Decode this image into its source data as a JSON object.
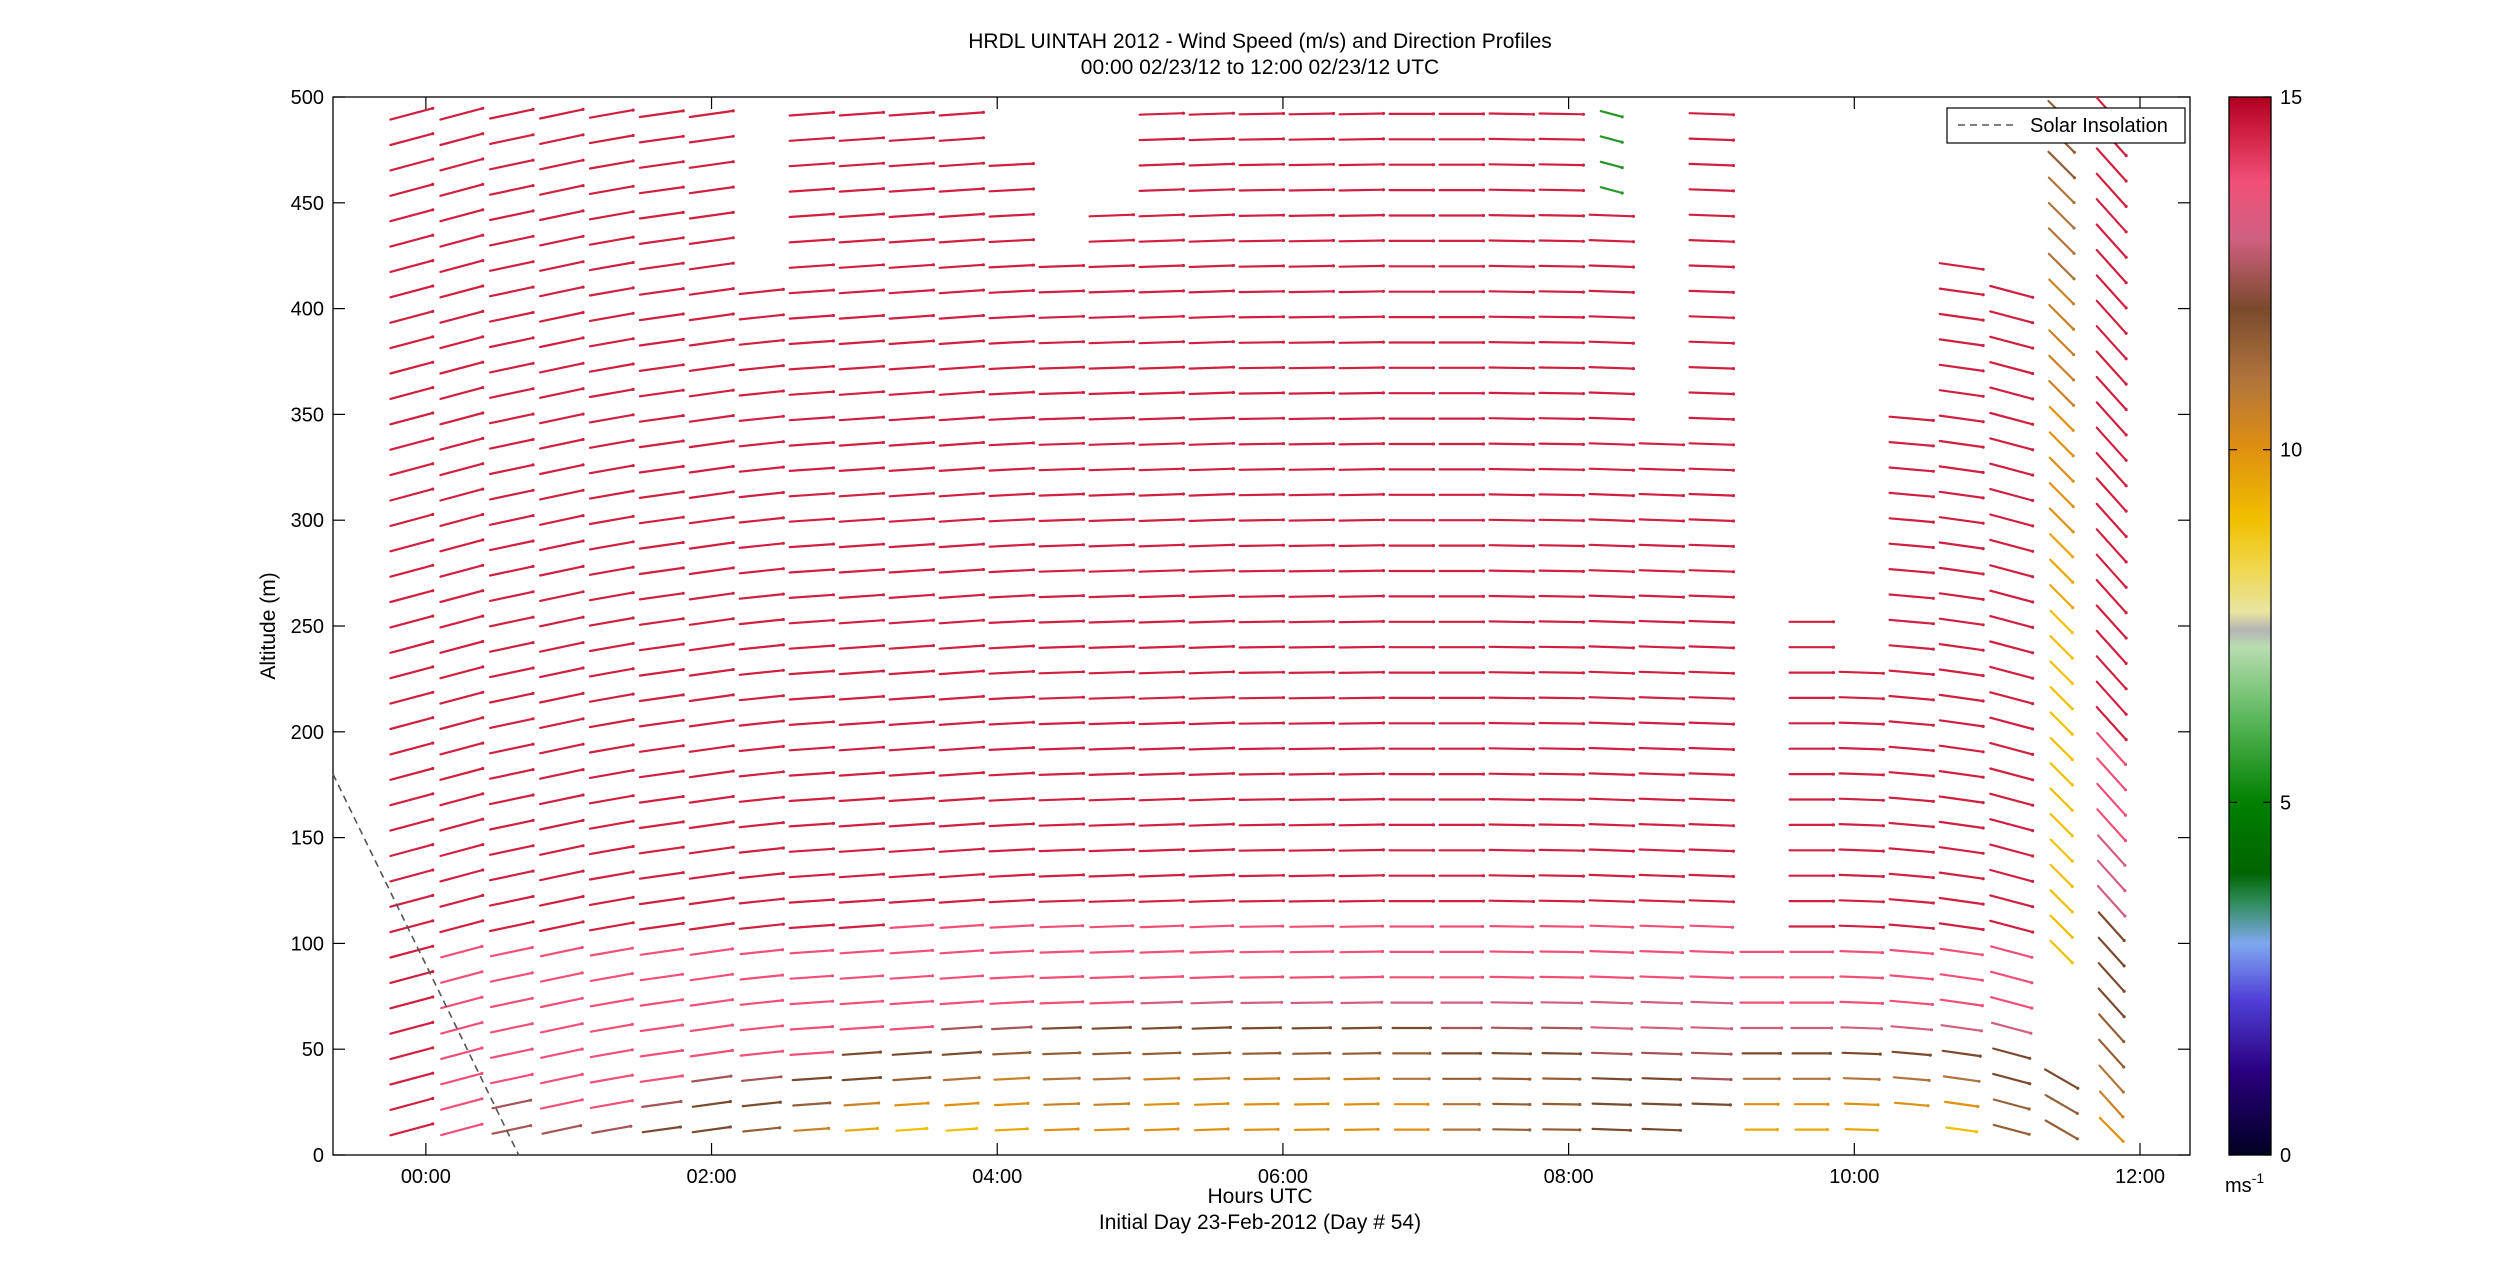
{
  "chart_data": {
    "type": "wind-barb-profile",
    "title": "HRDL UINTAH 2012 - Wind Speed (m/s) and Direction Profiles",
    "subtitle": "00:00 02/23/12 to 12:00 02/23/12  UTC",
    "xlabel": "Hours UTC",
    "footer": "Initial Day 23-Feb-2012 (Day # 54)",
    "ylabel": "Altitude (m)",
    "xlim": [
      -0.65,
      12.35
    ],
    "ylim": [
      0,
      500
    ],
    "x_ticks": [
      {
        "value": 0,
        "label": "00:00"
      },
      {
        "value": 2,
        "label": "02:00"
      },
      {
        "value": 4,
        "label": "04:00"
      },
      {
        "value": 6,
        "label": "06:00"
      },
      {
        "value": 8,
        "label": "08:00"
      },
      {
        "value": 10,
        "label": "10:00"
      },
      {
        "value": 12,
        "label": "12:00"
      }
    ],
    "y_ticks": [
      0,
      50,
      100,
      150,
      200,
      250,
      300,
      350,
      400,
      450,
      500
    ],
    "legend": {
      "label": "Solar Insolation",
      "placement": "top-right",
      "style": "dashed"
    },
    "solar_insolation": [
      [
        -0.65,
        180
      ],
      [
        0.65,
        0
      ]
    ],
    "colorbar": {
      "label": "ms",
      "label_sup": "-1",
      "range": [
        0,
        15
      ],
      "ticks": [
        0,
        5,
        10,
        15
      ],
      "stops": [
        {
          "v": 0,
          "color": "#000022"
        },
        {
          "v": 1.2,
          "color": "#2a0080"
        },
        {
          "v": 2.2,
          "color": "#5040d8"
        },
        {
          "v": 3.0,
          "color": "#80a8f0"
        },
        {
          "v": 3.6,
          "color": "#2e8b57"
        },
        {
          "v": 4.0,
          "color": "#006400"
        },
        {
          "v": 5.0,
          "color": "#008000"
        },
        {
          "v": 6.2,
          "color": "#5cb85c"
        },
        {
          "v": 7.2,
          "color": "#b8dcb0"
        },
        {
          "v": 7.45,
          "color": "#b4b4b4"
        },
        {
          "v": 7.7,
          "color": "#e8e4a0"
        },
        {
          "v": 8.3,
          "color": "#f0d850"
        },
        {
          "v": 9.0,
          "color": "#f0c000"
        },
        {
          "v": 10.0,
          "color": "#e09010"
        },
        {
          "v": 11.0,
          "color": "#b0743c"
        },
        {
          "v": 12.0,
          "color": "#7a4a2e"
        },
        {
          "v": 13.0,
          "color": "#d06080"
        },
        {
          "v": 13.8,
          "color": "#f05078"
        },
        {
          "v": 14.5,
          "color": "#d02040"
        },
        {
          "v": 15.0,
          "color": "#b00020"
        }
      ]
    },
    "sample_hours": [
      -0.1,
      0.25,
      0.6,
      0.95,
      1.3,
      1.65,
      2.0,
      2.35,
      2.7,
      3.05,
      3.4,
      3.75,
      4.1,
      4.45,
      4.8,
      5.15,
      5.5,
      5.85,
      6.2,
      6.55,
      6.9,
      7.25,
      7.6,
      7.95,
      8.3,
      8.65,
      9.0,
      9.35,
      9.7,
      10.05,
      10.4,
      10.75,
      11.1,
      11.45,
      11.8
    ],
    "heights_m": [
      12,
      24,
      36,
      48,
      60,
      72,
      84,
      96,
      108,
      120,
      132,
      144,
      156,
      168,
      180,
      192,
      204,
      216,
      228,
      240,
      252,
      264,
      276,
      288,
      300,
      312,
      324,
      336,
      348,
      360,
      372,
      384,
      396,
      408,
      420,
      432,
      444,
      456,
      468,
      480,
      492
    ],
    "profiles": [
      {
        "t": -0.1,
        "top": 492,
        "speed": "14.5 14.5 14.5 14.5 14.5 14.5 14.5 14.5 14.5 14.5 14.5 14.5 14.5 14.5 14.5 14.5 14.5 14.5 14.5 14.5 14.5 14.5 14.5 14.5 14.5 14.5 14.5 14.5 14.5 14.5 14.5 14.5 14.5 14.5 14.5 14.5 14.5 14.5 14.5 14.5 14.5",
        "dir": "255 255 255 255 255 255 255 255 255 255 255 255 255 255 255 255 255 255 255 255 255 255 255 255 255 255 255 255 255 255 255 255 255 255 255 255 255 255 255 255 255"
      },
      {
        "t": 0.25,
        "top": 492,
        "speed": "13.8 13.8 13.8 13.8 13.8 13.8 13.8 13.8 14.5 14.5 14.5 14.5 14.5 14.5 14.5 14.5 14.5 14.5 14.5 14.5 14.5 14.5 14.5 14.5 14.5 14.5 14.5 14.5 14.5 14.5 14.5 14.5 14.5 14.5 14.5 14.5 14.5 14.5 14.5 14.5 14.5",
        "dir": "255 255 255 255 255 255 255 255 255 255 255 255 255 255 255 255 255 255 255 255 255 255 255 255 255 255 255 255 255 255 255 255 255 255 255 255 255 255 255 255 255"
      },
      {
        "t": 0.6,
        "top": 492,
        "speed": "12.5 12.5 13.8 13.8 13.8 13.8 13.8 13.8 14.5 14.5 14.5 14.5 14.5 14.5 14.5 14.5 14.5 14.5 14.5 14.5 14.5 14.5 14.5 14.5 14.5 14.5 14.5 14.5 14.5 14.5 14.5 14.5 14.5 14.5 14.5 14.5 14.5 14.5 14.5 14.5 14.5",
        "dir": "258 258 258 258 258 258 258 258 258 258 258 258 258 258 258 258 258 258 258 258 258 258 258 258 258 258 258 258 258 258 258 258 258 258 258 258 258 258 258 258 258"
      },
      {
        "t": 0.95,
        "top": 492,
        "speed": "12.5 13.8 13.8 13.8 13.8 13.8 13.8 13.8 14.5 14.5 14.5 14.5 14.5 14.5 14.5 14.5 14.5 14.5 14.5 14.5 14.5 14.5 14.5 14.5 14.5 14.5 14.5 14.5 14.5 14.5 14.5 14.5 14.5 14.5 14.5 14.5 14.5 14.5 14.5 14.5 14.5",
        "dir": "258 258 258 258 258 258 258 258 258 258 258 258 258 258 258 258 258 258 258 258 258 258 258 258 258 258 258 258 258 258 258 258 258 258 258 258 258 258 258 258 258"
      },
      {
        "t": 1.3,
        "top": 492,
        "speed": "12.5 13.8 13.8 13.8 13.8 13.8 13.8 13.8 14.5 14.5 14.5 14.5 14.5 14.5 14.5 14.5 14.5 14.5 14.5 14.5 14.5 14.5 14.5 14.5 14.5 14.5 14.5 14.5 14.5 14.5 14.5 14.5 14.5 14.5 14.5 14.5 14.5 14.5 14.5 14.5 14.5",
        "dir": "260 260 260 260 260 260 260 260 260 260 260 260 260 260 260 260 260 260 260 260 260 260 260 260 260 260 260 260 260 260 260 260 260 260 260 260 260 260 260 260 260"
      },
      {
        "t": 1.65,
        "top": 492,
        "speed": "12.0 12.5 13.8 13.8 13.8 13.8 13.8 13.8 14.5 14.5 14.5 14.5 14.5 14.5 14.5 14.5 14.5 14.5 14.5 14.5 14.5 14.5 14.5 14.5 14.5 14.5 14.5 14.5 14.5 14.5 14.5 14.5 14.5 14.5 14.5 14.5 14.5 14.5 14.5 14.5 14.5",
        "dir": "262 262 262 262 262 262 262 262 262 262 262 262 262 262 262 262 262 262 262 262 262 262 262 262 262 262 262 262 262 262 262 262 262 262 262 262 262 262 262 262 262"
      },
      {
        "t": 2.0,
        "top": 492,
        "speed": "12.0 12.0 12.5 13.8 13.8 13.8 13.8 13.8 14.5 14.5 14.5 14.5 14.5 14.5 14.5 14.5 14.5 14.5 14.5 14.5 14.5 14.5 14.5 14.5 14.5 14.5 14.5 14.5 14.5 14.5 14.5 14.5 14.5 14.5 14.5 14.5 14.5 14.5 14.5 14.5 14.5",
        "dir": "262 262 262 262 262 262 262 262 262 262 262 262 262 262 262 262 262 262 262 262 262 262 262 262 262 262 262 262 262 262 262 262 262 262 262 262 262 262 262 262 262"
      },
      {
        "t": 2.35,
        "top": 408,
        "speed": "11.5 12.0 12.5 13.8 13.8 13.8 13.8 13.8 14.5 14.5 14.5 14.5 14.5 14.5 14.5 14.5 14.5 14.5 14.5 14.5 14.5 14.5 14.5 14.5 14.5 14.5 14.5 14.5 14.5 14.5 14.5 14.5 14.5 14.5",
        "dir": "264 264 264 264 264 264 264 264 264 264 264 264 264 264 264 264 264 264 264 264 264 264 264 264 264 264 264 264 264 264 264 264 264 264"
      },
      {
        "t": 2.7,
        "top": 492,
        "speed": "10.5 11.5 12.0 13.8 13.8 13.8 13.8 13.8 14.5 14.5 14.5 14.5 14.5 14.5 14.5 14.5 14.5 14.5 14.5 14.5 14.5 14.5 14.5 14.5 14.5 14.5 14.5 14.5 14.5 14.5 14.5 14.5 14.5 14.5 14.5 14.5 14.5 14.5 14.5 14.5 14.5",
        "dir": "266 266 266 266 266 266 266 266 266 266 266 266 266 266 266 266 266 266 266 266 266 266 266 266 266 266 266 266 266 266 266 266 266 266 266 266 266 266 266 266 266"
      },
      {
        "t": 3.05,
        "top": 492,
        "speed": "9.5 10.5 12.0 12.0 13.8 13.8 13.8 13.8 14.5 14.5 14.5 14.5 14.5 14.5 14.5 14.5 14.5 14.5 14.5 14.5 14.5 14.5 14.5 14.5 14.5 14.5 14.5 14.5 14.5 14.5 14.5 14.5 14.5 14.5 14.5 14.5 14.5 14.5 14.5 14.5 14.5",
        "dir": "266 266 266 266 266 266 266 266 266 266 266 266 266 266 266 266 266 266 266 266 266 266 266 266 266 266 266 266 266 266 266 266 266 266 266 266 266 266 266 266 266"
      },
      {
        "t": 3.4,
        "top": 492,
        "speed": "9.0 10.0 11.5 12.0 13.8 13.8 13.8 13.8 13.8 14.5 14.5 14.5 14.5 14.5 14.5 14.5 14.5 14.5 14.5 14.5 14.5 14.5 14.5 14.5 14.5 14.5 14.5 14.5 14.5 14.5 14.5 14.5 14.5 14.5 14.5 14.5 14.5 14.5 14.5 14.5 14.5",
        "dir": "266 266 266 266 266 266 266 266 266 266 266 266 266 266 266 266 266 266 266 266 266 266 266 266 266 266 266 266 266 266 266 266 266 266 266 266 266 266 266 266 266"
      },
      {
        "t": 3.75,
        "top": 492,
        "speed": "9.0 10.0 11.0 12.0 12.5 13.8 13.8 13.8 13.8 14.5 14.5 14.5 14.5 14.5 14.5 14.5 14.5 14.5 14.5 14.5 14.5 14.5 14.5 14.5 14.5 14.5 14.5 14.5 14.5 14.5 14.5 14.5 14.5 14.5 14.5 14.5 14.5 14.5 14.5 14.5 14.5",
        "dir": "266 266 266 266 266 266 266 266 266 266 266 266 266 266 266 266 266 266 266 266 266 266 266 266 266 266 266 266 266 266 266 266 266 266 266 266 266 266 266 266 266"
      },
      {
        "t": 4.1,
        "top": 468,
        "speed": "9.5 10.0 10.5 11.5 12.5 13.8 13.8 13.8 13.8 14.5 14.5 14.5 14.5 14.5 14.5 14.5 14.5 14.5 14.5 14.5 14.5 14.5 14.5 14.5 14.5 14.5 14.5 14.5 14.5 14.5 14.5 14.5 14.5 14.5 14.5 14.5 14.5 14.5 14.5",
        "dir": "267 267 267 267 267 267 267 267 267 267 267 267 267 267 267 267 267 267 267 267 267 267 267 267 267 267 267 267 267 267 267 267 267 267 267 267 267 267 267"
      },
      {
        "t": 4.45,
        "top": 420,
        "speed": "10.0 10.5 11.0 11.5 12.0 13.8 13.8 13.8 13.8 14.5 14.5 14.5 14.5 14.5 14.5 14.5 14.5 14.5 14.5 14.5 14.5 14.5 14.5 14.5 14.5 14.5 14.5 14.5 14.5 14.5 14.5 14.5 14.5 14.5 14.5",
        "dir": "268 268 268 268 268 268 268 268 268 268 268 268 268 268 268 268 268 268 268 268 268 268 268 268 268 268 268 268 268 268 268 268 268 268 268"
      },
      {
        "t": 4.8,
        "top": 444,
        "speed": "10.0 10.5 11.0 11.5 12.0 13.8 13.8 13.8 13.8 14.5 14.5 14.5 14.5 14.5 14.5 14.5 14.5 14.5 14.5 14.5 14.5 14.5 14.5 14.5 14.5 14.5 14.5 14.5 14.5 14.5 14.5 14.5 14.5 14.5 14.5 14.5 14.5",
        "dir": "268 268 268 268 268 268 268 268 268 268 268 268 268 268 268 268 268 268 268 268 268 268 268 268 268 268 268 268 268 268 268 268 268 268 268 268 268"
      },
      {
        "t": 5.15,
        "top": 492,
        "speed": "10.0 10.0 10.5 11.5 12.0 13.0 13.8 13.8 13.8 14.5 14.5 14.5 14.5 14.5 14.5 14.5 14.5 14.5 14.5 14.5 14.5 14.5 14.5 14.5 14.5 14.5 14.5 14.5 14.5 14.5 14.5 14.5 14.5 14.5 14.5 14.5 14.5 14.5 14.5 14.5 14.5",
        "dir": "268 268 268 268 268 268 268 268 268 268 268 268 268 268 268 268 268 268 268 268 268 268 268 268 268 268 268 268 268 268 268 268 268 268 268 268 268 268 268 268 268"
      },
      {
        "t": 5.5,
        "top": 492,
        "speed": "10.0 10.0 10.5 11.5 12.0 13.0 13.8 13.8 13.8 14.5 14.5 14.5 14.5 14.5 14.5 14.5 14.5 14.5 14.5 14.5 14.5 14.5 14.5 14.5 14.5 14.5 14.5 14.5 14.5 14.5 14.5 14.5 14.5 14.5 14.5 14.5 14.5 14.5 14.5 14.5 14.5",
        "dir": "268 268 268 268 268 268 268 268 268 268 268 268 268 268 268 268 268 268 268 268 268 268 268 268 268 268 268 268 268 268 268 268 268 268 268 268 268 268 268 268 268"
      },
      {
        "t": 5.85,
        "top": 492,
        "speed": "10.0 10.0 10.5 11.5 12.0 13.0 13.8 13.8 13.8 14.5 14.5 14.5 14.5 14.5 14.5 14.5 14.5 14.5 14.5 14.5 14.5 14.5 14.5 14.5 14.5 14.5 14.5 14.5 14.5 14.5 14.5 14.5 14.5 14.5 14.5 14.5 14.5 14.5 14.5 14.5 14.5",
        "dir": "269 269 269 269 269 269 269 269 269 269 269 269 269 269 269 269 269 269 269 269 269 269 269 269 269 269 269 269 269 269 269 269 269 269 269 269 269 269 269 269 269"
      },
      {
        "t": 6.2,
        "top": 492,
        "speed": "10.0 10.0 10.5 11.5 12.0 13.0 13.8 13.8 13.8 14.5 14.5 14.5 14.5 14.5 14.5 14.5 14.5 14.5 14.5 14.5 14.5 14.5 14.5 14.5 14.5 14.5 14.5 14.5 14.5 14.5 14.5 14.5 14.5 14.5 14.5 14.5 14.5 14.5 14.5 14.5 14.5",
        "dir": "269 269 269 269 269 269 269 269 269 269 269 269 269 269 269 269 269 269 269 269 269 269 269 269 269 269 269 269 269 269 269 269 269 269 269 269 269 269 269 269 269"
      },
      {
        "t": 6.55,
        "top": 492,
        "speed": "10.0 10.0 10.5 11.5 12.0 13.0 13.8 13.8 13.8 14.5 14.5 14.5 14.5 14.5 14.5 14.5 14.5 14.5 14.5 14.5 14.5 14.5 14.5 14.5 14.5 14.5 14.5 14.5 14.5 14.5 14.5 14.5 14.5 14.5 14.5 14.5 14.5 14.5 14.5 14.5 14.5",
        "dir": "269 269 269 269 269 269 269 269 269 269 269 269 269 269 269 269 269 269 269 269 269 269 269 269 269 269 269 269 269 269 269 269 269 269 269 269 269 269 269 269 269"
      },
      {
        "t": 6.9,
        "top": 492,
        "speed": "10.0 10.0 11.0 11.5 12.0 13.0 13.8 13.8 13.8 14.5 14.5 14.5 14.5 14.5 14.5 14.5 14.5 14.5 14.5 14.5 14.5 14.5 14.5 14.5 14.5 14.5 14.5 14.5 14.5 14.5 14.5 14.5 14.5 14.5 14.5 14.5 14.5 14.5 14.5 14.5 14.5",
        "dir": "270 270 270 270 270 270 270 270 270 270 270 270 270 270 270 270 270 270 270 270 270 270 270 270 270 270 270 270 270 270 270 270 270 270 270 270 270 270 270 270 270"
      },
      {
        "t": 7.25,
        "top": 492,
        "speed": "11.0 11.0 11.5 12.0 12.5 13.0 13.8 13.8 13.8 14.5 14.5 14.5 14.5 14.5 14.5 14.5 14.5 14.5 14.5 14.5 14.5 14.5 14.5 14.5 14.5 14.5 14.5 14.5 14.5 14.5 14.5 14.5 14.5 14.5 14.5 14.5 14.5 14.5 14.5 14.5 14.5",
        "dir": "270 270 270 270 270 270 270 270 270 270 270 270 270 270 270 270 270 270 270 270 270 270 270 270 270 270 270 270 270 270 270 270 270 270 270 270 270 270 270 270 270"
      },
      {
        "t": 7.6,
        "top": 492,
        "speed": "11.5 11.5 11.5 12.0 12.5 13.0 13.8 13.8 13.8 14.5 14.5 14.5 14.5 14.5 14.5 14.5 14.5 14.5 14.5 14.5 14.5 14.5 14.5 14.5 14.5 14.5 14.5 14.5 14.5 14.5 14.5 14.5 14.5 14.5 14.5 14.5 14.5 14.5 14.5 14.5 14.5",
        "dir": "271 271 271 271 271 271 271 271 271 271 271 271 271 271 271 271 271 271 271 271 271 271 271 271 271 271 271 271 271 271 271 271 271 271 271 271 271 271 271 271 271"
      },
      {
        "t": 7.95,
        "top": 492,
        "speed": "11.5 11.5 11.5 12.0 12.5 13.0 13.8 13.8 13.8 14.5 14.5 14.5 14.5 14.5 14.5 14.5 14.5 14.5 14.5 14.5 14.5 14.5 14.5 14.5 14.5 14.5 14.5 14.5 14.5 14.5 14.5 14.5 14.5 14.5 14.5 14.5 14.5 14.5 14.5 14.5 14.5",
        "dir": "271 271 271 271 271 271 271 271 271 271 271 271 271 271 271 271 271 271 271 271 271 271 271 271 271 271 271 271 271 271 271 271 271 271 271 271 271 271 271 271 271"
      },
      {
        "t": 8.3,
        "top": 492,
        "speed": "12.0 12.0 12.0 12.5 13.0 13.0 13.8 13.8 13.8 14.5 14.5 14.5 14.5 14.5 14.5 14.5 14.5 14.5 14.5 14.5 14.5 14.5 14.5 14.5 14.5 14.5 14.5 14.5 14.5 14.5 14.5 14.5 14.5 14.5 14.5 14.5 14.5 5.5 5.5 5.5 5.5",
        "dir": "272 272 272 272 272 272 272 272 272 272 272 272 272 272 272 272 272 272 272 272 272 272 272 272 272 272 272 272 272 272 272 272 272 272 272 272 272 285 285 285 285"
      },
      {
        "t": 8.65,
        "top": 336,
        "speed": "12.0 12.0 12.0 12.5 13.0 13.0 13.8 13.8 13.8 14.5 14.5 14.5 14.5 14.5 14.5 14.5 14.5 14.5 14.5 14.5 14.5 14.5 14.5 14.5 14.5 14.5 14.5 14.5",
        "dir": "272 272 272 272 272 272 272 272 272 272 272 272 272 272 272 272 272 272 272 272 272 272 272 272 272 272 272 272"
      },
      {
        "t": 9.0,
        "top": 492,
        "speed": "- 12.0 12.5 12.5 13.0 13.0 13.8 13.8 13.8 14.5 14.5 14.5 14.5 14.5 14.5 14.5 14.5 14.5 14.5 14.5 14.5 14.5 14.5 14.5 14.5 14.5 14.5 14.5 14.5 14.5 14.5 14.5 14.5 14.5 14.5 14.5 14.5 14.5 14.5 14.5 14.5",
        "dir": "272 272 272 272 272 272 272 272 272 272 272 272 272 272 272 272 272 272 272 272 272 272 272 272 272 272 272 272 272 272 272 272 272 272 272 272 272 272 272 272 272"
      },
      {
        "t": 9.35,
        "top": 96,
        "speed": "9.5 10.0 11.0 12.0 13.0 13.8 13.8 13.8",
        "dir": "270 270 270 270 270 270 270 270"
      },
      {
        "t": 9.7,
        "top": 252,
        "speed": "9.5 10.0 11.0 12.0 13.0 13.8 13.8 13.8 14.5 14.5 14.5 14.5 14.5 14.5 14.5 14.5 14.5 14.5 14.5 14.5 14.5",
        "dir": "270 270 270 270 270 270 270 270 270 270 270 270 270 270 270 270 270 270 270 270 270"
      },
      {
        "t": 10.05,
        "top": 228,
        "speed": "9.5 10.0 11.0 12.0 13.0 13.8 13.8 13.8 14.5 14.5 14.5 14.5 14.5 14.5 14.5 14.5 14.5 14.5 14.5",
        "dir": "272 272 272 272 272 272 272 272 272 272 272 272 272 272 272 272 272 272 272"
      },
      {
        "t": 10.4,
        "top": 348,
        "speed": "- 10.0 11.0 12.0 13.0 13.8 13.8 13.8 14.5 14.5 14.5 14.5 14.5 14.5 14.5 14.5 14.5 14.5 14.5 14.5 14.5 14.5 14.5 14.5 14.5 14.5 14.5 14.5 14.5",
        "dir": "275 275 275 275 275 275 275 275 275 275 275 275 275 275 275 275 275 275 275 275 275 275 275 275 275 275 275 275 275"
      },
      {
        "t": 10.75,
        "top": 420,
        "speed": "9.0 10.0 11.0 12.0 13.0 13.8 13.8 13.8 14.5 14.5 14.5 14.5 14.5 14.5 14.5 14.5 14.5 14.5 14.5 14.5 14.5 14.5 14.5 14.5 14.5 14.5 14.5 14.5 14.5 14.5 14.5 14.5 14.5 14.5 14.5",
        "dir": "278 278 278 278 278 278 278 278 278 278 278 278 278 278 278 278 278 278 278 278 278 278 278 278 278 278 278 278 278 278 278 278 278 278 278"
      },
      {
        "t": 11.1,
        "top": 408,
        "speed": "11.5 11.5 12.0 12.0 13.0 13.8 13.8 13.8 14.5 14.5 14.5 14.5 14.5 14.5 14.5 14.5 14.5 14.5 14.5 14.5 14.5 14.5 14.5 14.5 14.5 14.5 14.5 14.5 14.5 14.5 14.5 14.5 14.5 14.5",
        "dir": "285 285 285 285 285 285 285 285 285 285 285 285 285 285 285 285 285 285 285 285 285 285 285 285 285 285 285 285 285 285 285 285 285 285"
      },
      {
        "t": 11.45,
        "top": 492,
        "speed": "11.5 11.5 12.0 - - - - 9.0 9.0 9.0 9.0 9.0 9.0 9.0 9.0 9.0 9.0 9.0 9.0 9.0 9.0 9.5 9.5 9.5 10.0 10.0 10.0 10.0 10.0 10.5 10.5 10.5 10.5 10.5 11.0 11.0 11.0 11.0 11.5 11.5 11.5",
        "dir": "300 300 300 - - - - 315 315 315 315 315 315 315 315 315 315 315 315 315 315 315 315 315 315 315 315 315 315 315 315 315 315 315 315 315 315 315 315 315 315"
      },
      {
        "t": 11.8,
        "top": 492,
        "speed": "10.0 10.5 11.0 11.5 11.5 12.0 12.0 12.0 12.0 13.0 13.0 13.0 13.8 13.8 13.8 13.8 14.5 14.5 14.5 14.5 14.5 14.5 14.5 14.5 14.5 14.5 14.5 14.5 14.5 14.5 14.5 14.5 14.5 14.5 14.5 14.5 14.5 14.5 14.5 14.5 14.5",
        "dir": "315 318 318 318 318 318 318 318 318 318 318 318 318 318 318 318 318 318 318 318 318 318 318 318 318 318 318 318 318 318 318 318 318 318 318 318 318 318 318 318 318"
      }
    ]
  }
}
